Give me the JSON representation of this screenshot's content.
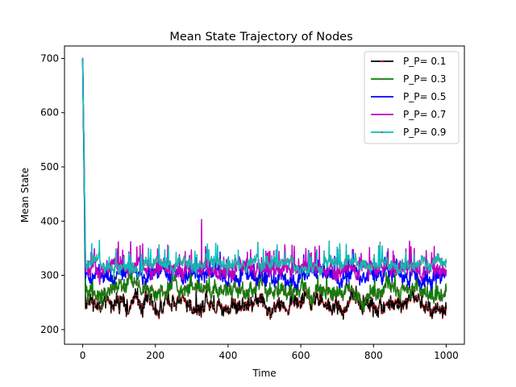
{
  "chart_data": {
    "type": "line",
    "title": "Mean State Trajectory of Nodes",
    "xlabel": "Time",
    "ylabel": "Mean State",
    "xlim": [
      -50,
      1050
    ],
    "ylim": [
      173,
      723
    ],
    "xticks": [
      0,
      200,
      400,
      600,
      800,
      1000
    ],
    "yticks": [
      200,
      300,
      400,
      500,
      600,
      700
    ],
    "grid": false,
    "legend_position": "top-right",
    "x_range": [
      0,
      1000
    ],
    "series": [
      {
        "name": "P_P= 0.1",
        "color": "#000000",
        "marker_color": "#d62728",
        "marker": "dots",
        "start": 700,
        "mean": 248,
        "amplitude": 22,
        "spike_rate": 0.03,
        "spike": 25
      },
      {
        "name": "P_P= 0.3",
        "color": "#008000",
        "marker_color": "#8c564b",
        "marker": "dots",
        "start": 700,
        "mean": 272,
        "amplitude": 20,
        "spike_rate": 0.04,
        "spike": 35
      },
      {
        "name": "P_P= 0.5",
        "color": "#0000ff",
        "marker_color": "#555555",
        "marker": "none",
        "start": 700,
        "mean": 300,
        "amplitude": 18,
        "spike_rate": 0.05,
        "spike": 35
      },
      {
        "name": "P_P= 0.7",
        "color": "#bf00bf",
        "marker_color": "#555555",
        "marker": "none",
        "start": 700,
        "mean": 312,
        "amplitude": 18,
        "spike_rate": 0.06,
        "spike": 45,
        "peak": {
          "x": 327,
          "y": 403
        }
      },
      {
        "name": "P_P= 0.9",
        "color": "#00bfbf",
        "marker_color": "#7f7f7f",
        "marker": "dots",
        "start": 700,
        "mean": 320,
        "amplitude": 16,
        "spike_rate": 0.06,
        "spike": 35
      }
    ]
  }
}
